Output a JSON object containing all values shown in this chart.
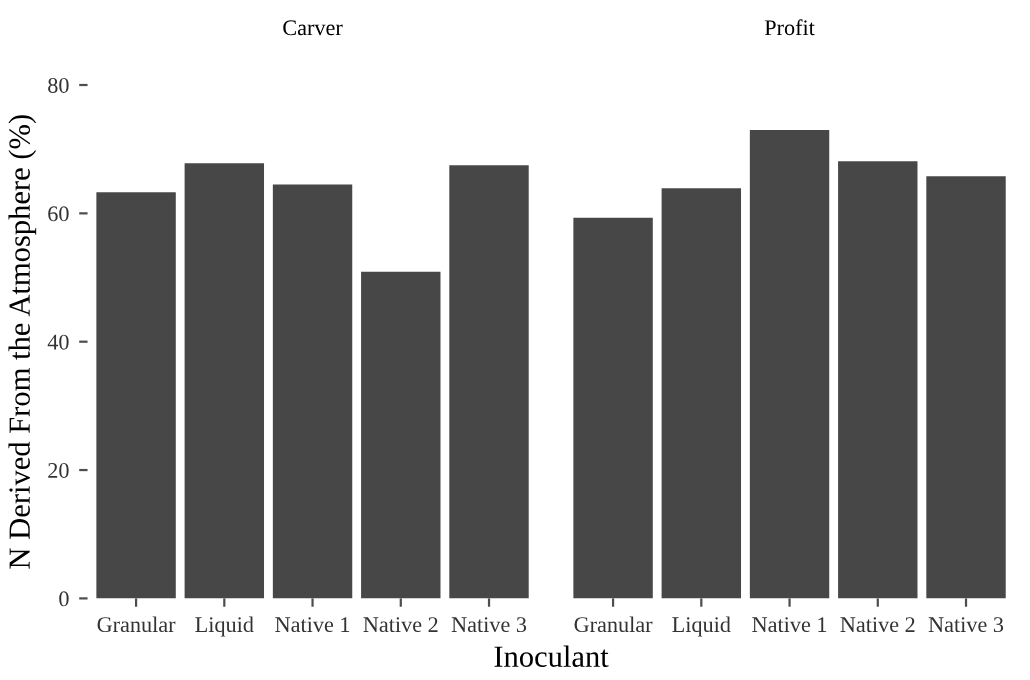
{
  "chart_data": [
    {
      "type": "bar",
      "title": "Carver",
      "ylabel": "N Derived From the Atmosphere (%)",
      "xlabel": "Inoculant",
      "categories": [
        "Granular",
        "Liquid",
        "Native 1",
        "Native 2",
        "Native 3"
      ],
      "values": [
        63.3,
        67.8,
        64.5,
        50.9,
        67.5
      ],
      "color": "#474747",
      "ylim": [
        0,
        80
      ],
      "yticks": [
        0,
        20,
        40,
        60,
        80
      ],
      "grid": false,
      "legend": false
    },
    {
      "type": "bar",
      "title": "Profit",
      "categories": [
        "Granular",
        "Liquid",
        "Native 1",
        "Native 2",
        "Native 3"
      ],
      "values": [
        59.3,
        63.9,
        73.0,
        68.1,
        65.8
      ],
      "color": "#474747",
      "ylim": [
        0,
        80
      ],
      "yticks": [
        0,
        20,
        40,
        60,
        80
      ],
      "grid": false,
      "legend": false,
      "tick_labels": "x"
    }
  ]
}
